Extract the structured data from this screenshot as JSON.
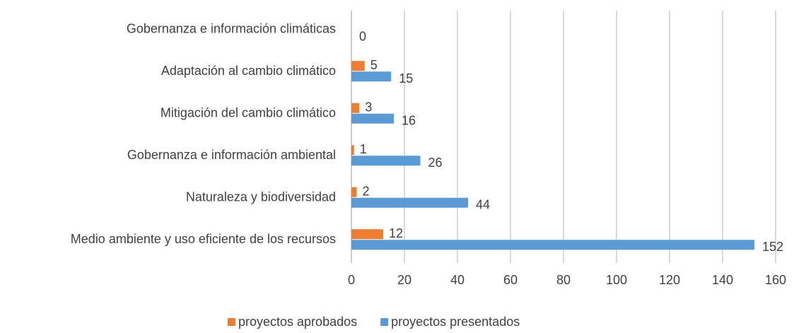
{
  "chart_data": {
    "type": "bar",
    "orientation": "horizontal",
    "categories": [
      "Gobernanza e información climáticas",
      "Adaptación al cambio climático",
      "Mitigación del cambio climático",
      "Gobernanza e información ambiental",
      "Naturaleza y biodiversidad",
      "Medio ambiente y uso eficiente de los recursos"
    ],
    "series": [
      {
        "name": "proyectos aprobados",
        "color": "#ed7d31",
        "values": [
          null,
          5,
          3,
          1,
          2,
          12
        ]
      },
      {
        "name": "proyectos presentados",
        "color": "#5b9bd5",
        "values": [
          0,
          15,
          16,
          26,
          44,
          152
        ]
      }
    ],
    "xlim": [
      0,
      160
    ],
    "xticks": [
      0,
      20,
      40,
      60,
      80,
      100,
      120,
      140,
      160
    ],
    "grid": true,
    "legend": "bottom"
  }
}
